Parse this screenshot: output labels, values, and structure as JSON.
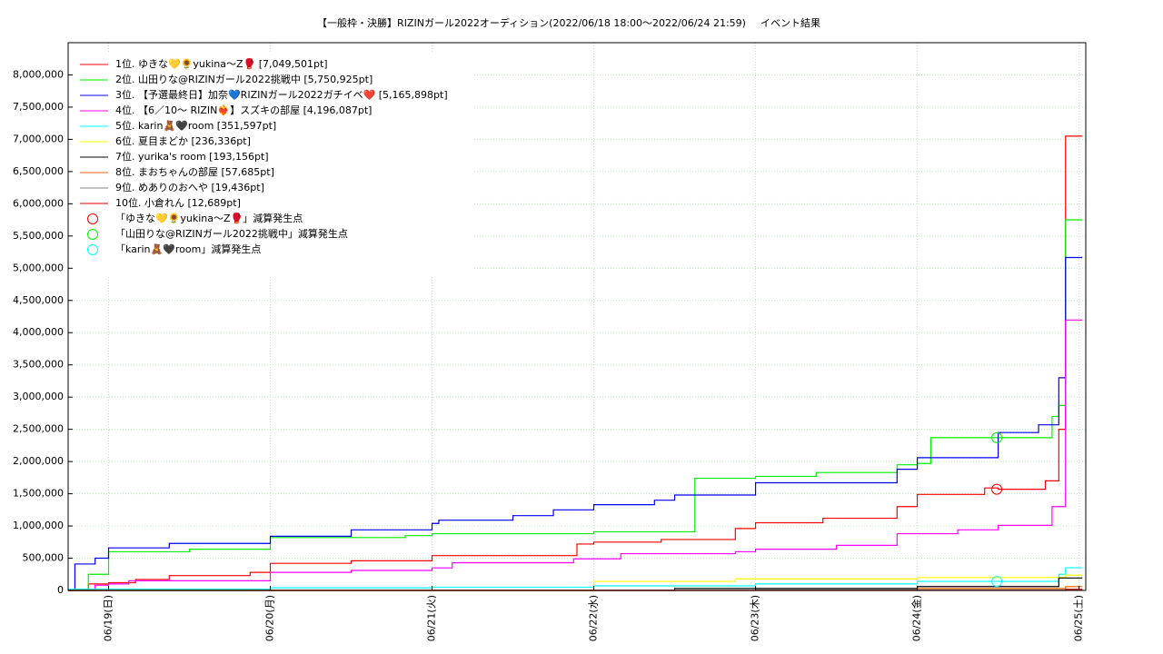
{
  "chart_data": {
    "type": "line",
    "step": true,
    "title": "【一般枠・決勝】RIZINガール2022オーディション(2022/06/18 18:00〜2022/06/24 21:59)",
    "subtitle": "イベント結果",
    "xlim": [
      "2022-06-18T18:00",
      "2022-06-25T01:00"
    ],
    "xticks": [
      {
        "value": "2022-06-19T00:00",
        "label": "06/19(日)"
      },
      {
        "value": "2022-06-20T00:00",
        "label": "06/20(月)"
      },
      {
        "value": "2022-06-21T00:00",
        "label": "06/21(火)"
      },
      {
        "value": "2022-06-22T00:00",
        "label": "06/22(水)"
      },
      {
        "value": "2022-06-23T00:00",
        "label": "06/23(木)"
      },
      {
        "value": "2022-06-24T00:00",
        "label": "06/24(金)"
      },
      {
        "value": "2022-06-25T00:00",
        "label": "06/25(土)"
      }
    ],
    "ylim": [
      0,
      8500000
    ],
    "yticks": [
      0,
      {
        "value": 500000,
        "label": "500,000"
      },
      {
        "value": 1000000,
        "label": "1,000,000"
      },
      {
        "value": 1500000,
        "label": "1,500,000"
      },
      {
        "value": 2000000,
        "label": "2,000,000"
      },
      {
        "value": 2500000,
        "label": "2,500,000"
      },
      {
        "value": 3000000,
        "label": "3,000,000"
      },
      {
        "value": 3500000,
        "label": "3,500,000"
      },
      {
        "value": 4000000,
        "label": "4,000,000"
      },
      {
        "value": 4500000,
        "label": "4,500,000"
      },
      {
        "value": 5000000,
        "label": "5,000,000"
      },
      {
        "value": 5500000,
        "label": "5,500,000"
      },
      {
        "value": 6000000,
        "label": "6,000,000"
      },
      {
        "value": 6500000,
        "label": "6,500,000"
      },
      {
        "value": 7000000,
        "label": "7,000,000"
      },
      {
        "value": 7500000,
        "label": "7,500,000"
      },
      {
        "value": 8000000,
        "label": "8,000,000"
      }
    ],
    "grid": true,
    "series": [
      {
        "name": "1位. ゆきな💛🌻yukina〜Z🥊 [7,049,501pt]",
        "color": "#ff0000",
        "x": [
          "2022-06-18T18:00",
          "2022-06-18T21:00",
          "2022-06-19T00:00",
          "2022-06-19T04:00",
          "2022-06-19T09:00",
          "2022-06-19T21:00",
          "2022-06-20T00:00",
          "2022-06-20T12:00",
          "2022-06-21T00:00",
          "2022-06-21T21:30",
          "2022-06-22T00:00",
          "2022-06-22T10:00",
          "2022-06-22T21:00",
          "2022-06-23T00:00",
          "2022-06-23T10:00",
          "2022-06-23T21:00",
          "2022-06-24T00:00",
          "2022-06-24T10:00",
          "2022-06-24T12:00",
          "2022-06-24T19:00",
          "2022-06-24T21:00",
          "2022-06-24T22:00",
          "2022-06-25T00:30"
        ],
        "values": [
          0,
          100000,
          120000,
          170000,
          230000,
          280000,
          420000,
          460000,
          540000,
          720000,
          750000,
          790000,
          960000,
          1050000,
          1120000,
          1300000,
          1490000,
          1590000,
          1570000,
          1700000,
          2500000,
          7049501,
          7049501
        ]
      },
      {
        "name": "2位. 山田りな@RIZINガール2022挑戦中 [5,750,925pt]",
        "color": "#00ee00",
        "x": [
          "2022-06-18T18:00",
          "2022-06-18T21:00",
          "2022-06-19T00:00",
          "2022-06-19T12:00",
          "2022-06-20T00:00",
          "2022-06-20T20:00",
          "2022-06-21T00:00",
          "2022-06-22T00:00",
          "2022-06-22T15:00",
          "2022-06-23T00:00",
          "2022-06-23T09:00",
          "2022-06-23T21:00",
          "2022-06-24T00:00",
          "2022-06-24T02:00",
          "2022-06-24T20:00",
          "2022-06-24T21:00",
          "2022-06-24T22:00",
          "2022-06-25T00:30"
        ],
        "values": [
          0,
          250000,
          600000,
          640000,
          820000,
          850000,
          880000,
          910000,
          1740000,
          1770000,
          1830000,
          1950000,
          1970000,
          2370000,
          2700000,
          2870000,
          5750925,
          5750925
        ]
      },
      {
        "name": "3位. 【予選最終日】加奈💙RIZINガール2022ガチイベ❤️ [5,165,898pt]",
        "color": "#0000ee",
        "x": [
          "2022-06-18T18:00",
          "2022-06-18T19:00",
          "2022-06-18T22:00",
          "2022-06-19T00:00",
          "2022-06-19T09:00",
          "2022-06-20T00:00",
          "2022-06-20T12:00",
          "2022-06-21T00:00",
          "2022-06-21T01:00",
          "2022-06-21T12:00",
          "2022-06-21T18:00",
          "2022-06-22T00:00",
          "2022-06-22T09:00",
          "2022-06-22T12:00",
          "2022-06-23T00:00",
          "2022-06-23T21:00",
          "2022-06-24T00:00",
          "2022-06-24T12:00",
          "2022-06-24T18:00",
          "2022-06-24T21:00",
          "2022-06-24T22:00",
          "2022-06-25T00:30"
        ],
        "values": [
          0,
          410000,
          500000,
          660000,
          730000,
          840000,
          940000,
          1040000,
          1090000,
          1160000,
          1250000,
          1330000,
          1400000,
          1480000,
          1670000,
          1880000,
          2060000,
          2450000,
          2570000,
          3300000,
          5165898,
          5165898
        ]
      },
      {
        "name": "4位. 【6／10〜 RIZIN❤️‍🔥】スズキの部屋 [4,196,087pt]",
        "color": "#ff00ff",
        "x": [
          "2022-06-18T18:00",
          "2022-06-18T22:00",
          "2022-06-19T00:00",
          "2022-06-19T03:00",
          "2022-06-20T00:00",
          "2022-06-20T12:00",
          "2022-06-21T00:00",
          "2022-06-21T03:00",
          "2022-06-21T21:00",
          "2022-06-22T04:00",
          "2022-06-22T21:00",
          "2022-06-23T00:00",
          "2022-06-23T12:00",
          "2022-06-23T21:00",
          "2022-06-24T06:00",
          "2022-06-24T12:00",
          "2022-06-24T20:00",
          "2022-06-24T22:00",
          "2022-06-25T00:30"
        ],
        "values": [
          0,
          80000,
          100000,
          150000,
          280000,
          310000,
          350000,
          430000,
          490000,
          570000,
          600000,
          640000,
          700000,
          880000,
          940000,
          1010000,
          1300000,
          4196087,
          4196087
        ]
      },
      {
        "name": "5位. karin🧸🖤room [351,597pt]",
        "color": "#00ffff",
        "x": [
          "2022-06-18T18:00",
          "2022-06-20T00:00",
          "2022-06-21T00:00",
          "2022-06-22T00:00",
          "2022-06-23T00:00",
          "2022-06-24T00:00",
          "2022-06-24T21:00",
          "2022-06-24T22:00",
          "2022-06-25T00:30"
        ],
        "values": [
          20000,
          40000,
          50000,
          70000,
          100000,
          140000,
          250000,
          351597,
          351597
        ]
      },
      {
        "name": "6位. 夏目まどか [236,336pt]",
        "color": "#ffff00",
        "x": [
          "2022-06-18T18:00",
          "2022-06-22T00:00",
          "2022-06-22T21:00",
          "2022-06-24T00:00",
          "2022-06-24T22:00",
          "2022-06-25T00:30"
        ],
        "values": [
          0,
          140000,
          180000,
          200000,
          236336,
          236336
        ]
      },
      {
        "name": "7位. yurika's room [193,156pt]",
        "color": "#000000",
        "x": [
          "2022-06-18T18:00",
          "2022-06-22T12:00",
          "2022-06-24T00:00",
          "2022-06-24T21:00",
          "2022-06-25T00:30"
        ],
        "values": [
          0,
          30000,
          60000,
          193156,
          193156
        ]
      },
      {
        "name": "8位. まおちゃんの部屋 [57,685pt]",
        "color": "#ee6600",
        "x": [
          "2022-06-18T18:00",
          "2022-06-24T00:00",
          "2022-06-24T22:00",
          "2022-06-25T00:30"
        ],
        "values": [
          0,
          30000,
          57685,
          57685
        ]
      },
      {
        "name": "9位. めありのおへや [19,436pt]",
        "color": "#808080",
        "x": [
          "2022-06-18T18:00",
          "2022-06-23T00:00",
          "2022-06-24T22:00",
          "2022-06-25T00:30"
        ],
        "values": [
          0,
          10000,
          19436,
          19436
        ]
      },
      {
        "name": "10位. 小倉れん [12,689pt]",
        "color": "#dd0000",
        "x": [
          "2022-06-18T18:00",
          "2022-06-24T22:00",
          "2022-06-25T00:30"
        ],
        "values": [
          0,
          12689,
          12689
        ]
      }
    ],
    "markers": [
      {
        "name": "「ゆきな💛🌻yukina〜Z🥊」減算発生点",
        "color": "#ff0000",
        "x": "2022-06-24T11:48",
        "y": 1570000
      },
      {
        "name": "「山田りな@RIZINガール2022挑戦中」減算発生点",
        "color": "#00ee00",
        "x": "2022-06-24T11:48",
        "y": 2370000
      },
      {
        "name": "「karin🧸🖤room」減算発生点",
        "color": "#00ffff",
        "x": "2022-06-24T11:48",
        "y": 140000
      }
    ]
  }
}
